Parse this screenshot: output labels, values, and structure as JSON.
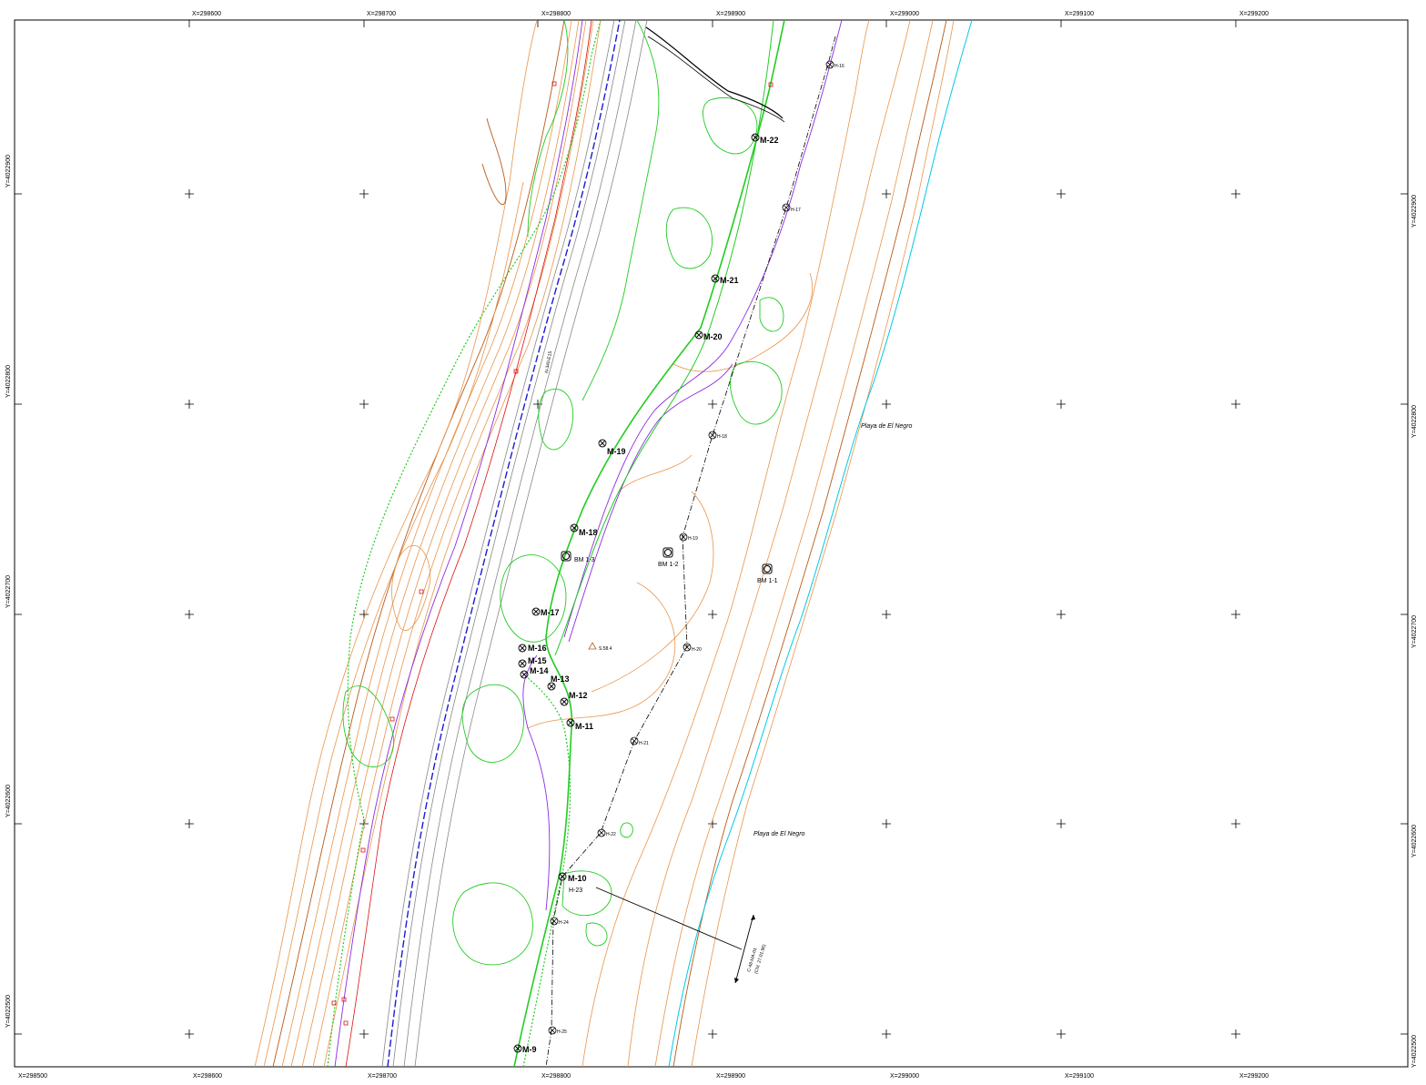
{
  "coords": {
    "x_top": [
      "X=298600",
      "X=298700",
      "X=298800",
      "X=298900",
      "X=299000",
      "X=299100",
      "X=299200"
    ],
    "x_bottom": [
      "X=298500",
      "X=298600",
      "X=298700",
      "X=298800",
      "X=298900",
      "X=299000",
      "X=299100",
      "X=299200"
    ],
    "y_left": [
      "Y=4022900",
      "Y=4022800",
      "Y=4022700",
      "Y=4022600",
      "Y=4022500"
    ],
    "y_right": [
      "Y=4022900",
      "Y=4022800",
      "Y=4022700",
      "Y=4022600",
      "Y=4022500"
    ]
  },
  "labels": {
    "beach_1": "Playa de El Negro",
    "beach_2": "Playa de El Negro",
    "road": "N-340-E15",
    "line_note_1": "C-48-MA-01",
    "line_note_2": "(CM. 27.01.96)",
    "survey_point": "S.58.4"
  },
  "m_markers": [
    "M-22",
    "M-21",
    "M-20",
    "M-19",
    "M-18",
    "M-17",
    "M-16",
    "M-15",
    "M-14",
    "M-13",
    "M-12",
    "M-11",
    "M-10",
    "M-9"
  ],
  "h_markers": [
    "H-16",
    "H-17",
    "H-18",
    "H-19",
    "H-20",
    "H-21",
    "H-22",
    "H-23",
    "H-24",
    "H-25"
  ],
  "benchmarks": [
    "BM 1-3",
    "BM 1-2",
    "BM 1-1"
  ],
  "colors": {
    "contour": "#e8944a",
    "contour_dark": "#b85a1a",
    "vegetation": "#22cc22",
    "boundary": "#8a2be2",
    "road": "#888888",
    "water": "#00c8e6",
    "highway_marker": "#1a1ad4"
  }
}
